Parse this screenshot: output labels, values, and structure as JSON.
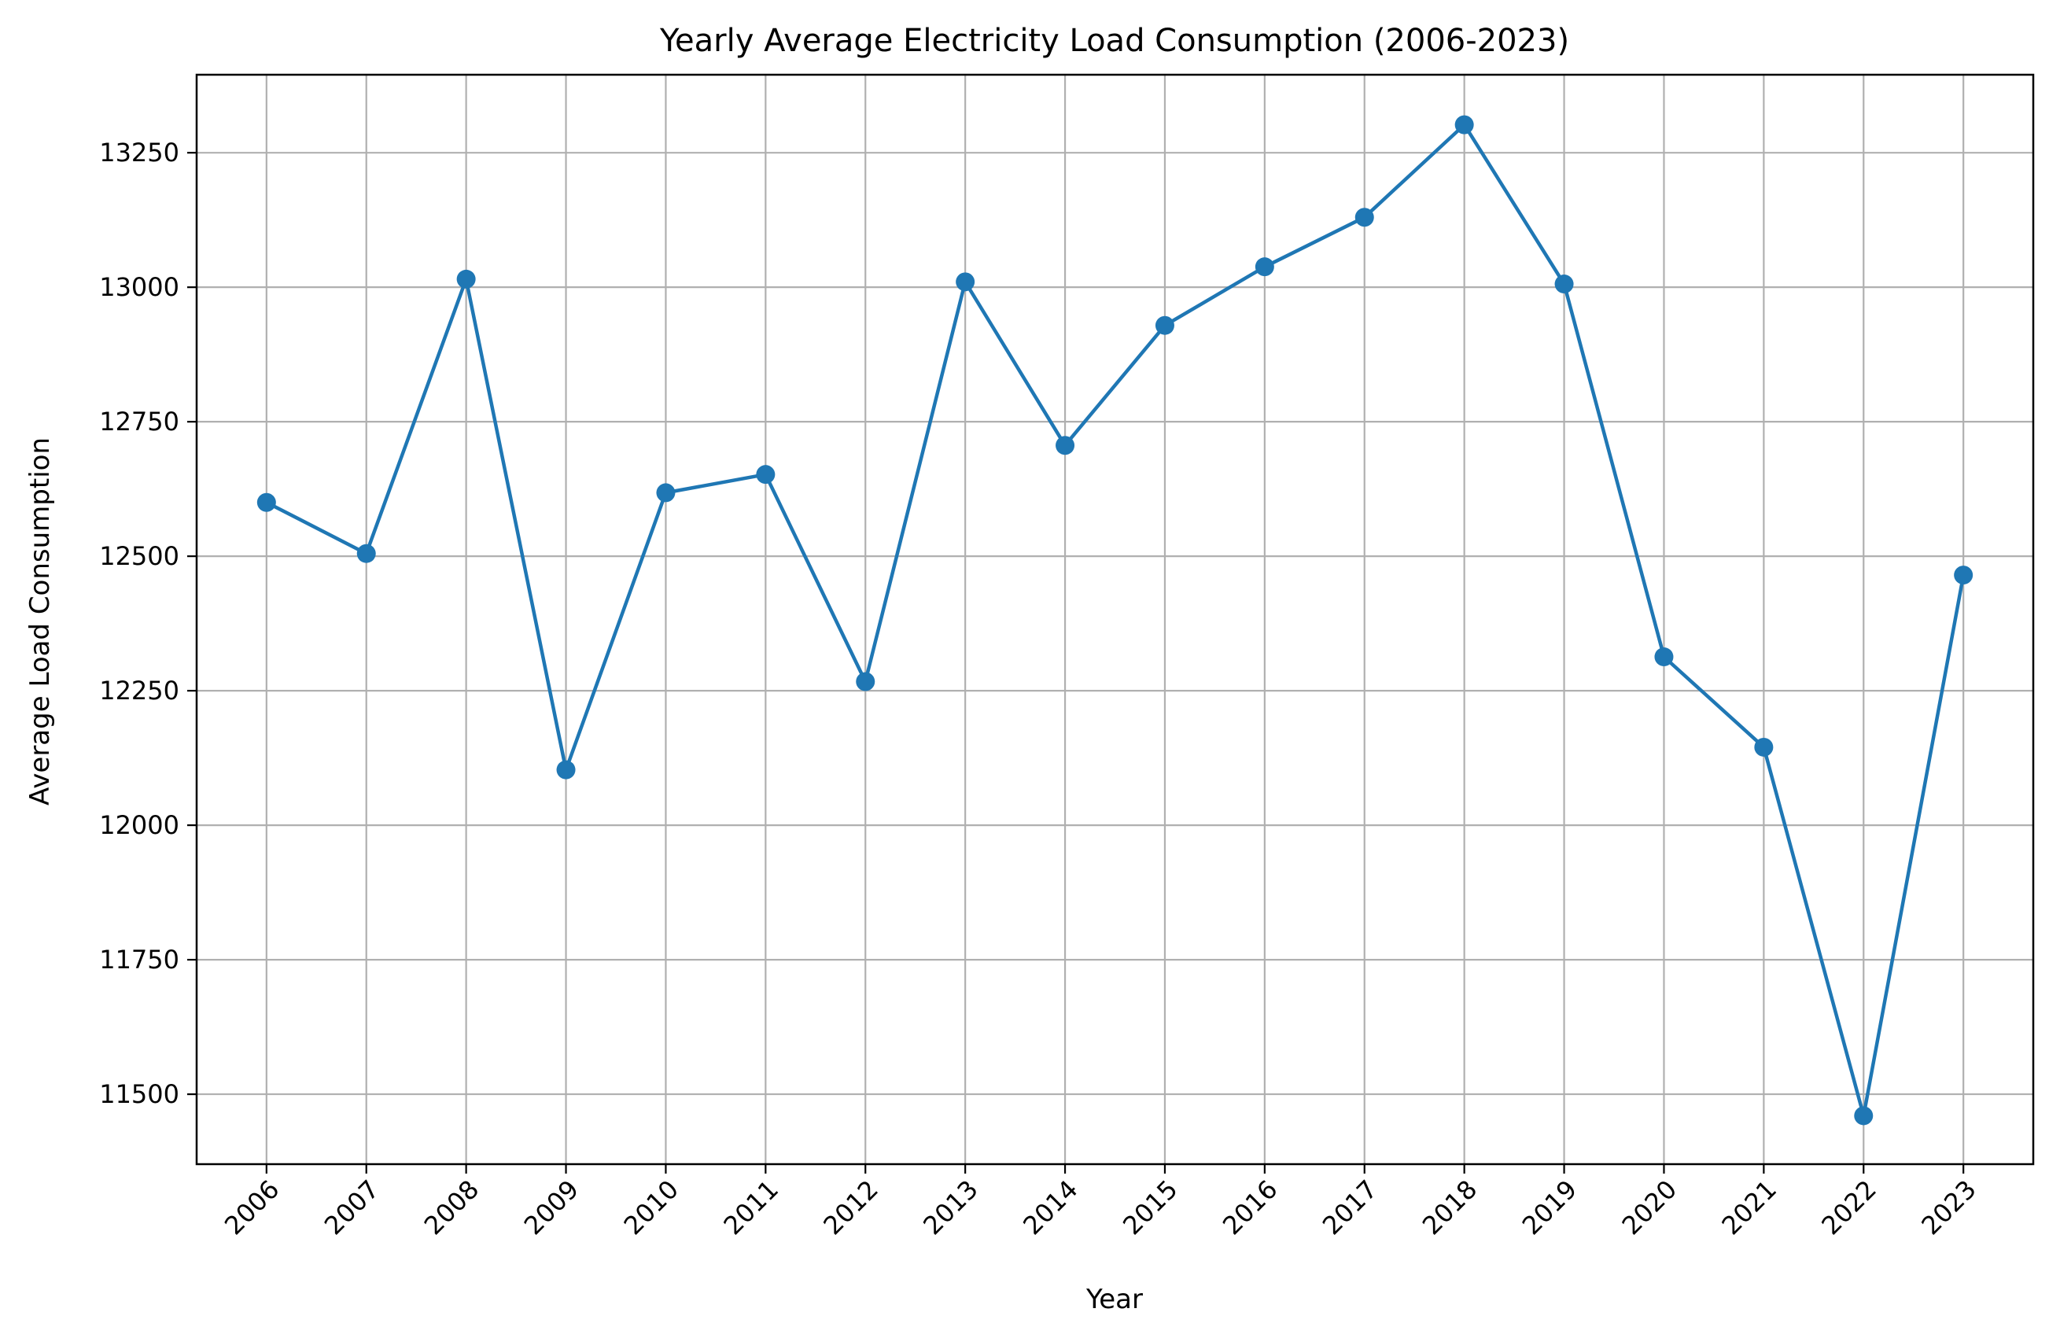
{
  "chart_data": {
    "type": "line",
    "title": "Yearly Average Electricity Load Consumption (2006-2023)",
    "xlabel": "Year",
    "ylabel": "Average Load Consumption",
    "categories": [
      "2006",
      "2007",
      "2008",
      "2009",
      "2010",
      "2011",
      "2012",
      "2013",
      "2014",
      "2015",
      "2016",
      "2017",
      "2018",
      "2019",
      "2020",
      "2021",
      "2022",
      "2023"
    ],
    "series": [
      {
        "values": [
          12600,
          12505,
          13015,
          12103,
          12618,
          12652,
          12267,
          13010,
          12706,
          12929,
          13038,
          13130,
          13302,
          13006,
          12313,
          12145,
          11460,
          12465
        ]
      }
    ],
    "ylim": [
      11370,
      13395
    ],
    "yticks": [
      11500,
      11750,
      12000,
      12250,
      12500,
      12750,
      13000,
      13250
    ],
    "ytick_labels": [
      "11500",
      "11750",
      "12000",
      "12250",
      "12500",
      "12750",
      "13000",
      "13250"
    ],
    "grid": true,
    "marker": "circle",
    "colors": {
      "series": "#1f77b4",
      "grid": "#b0b0b0",
      "axes": "#000000"
    }
  }
}
